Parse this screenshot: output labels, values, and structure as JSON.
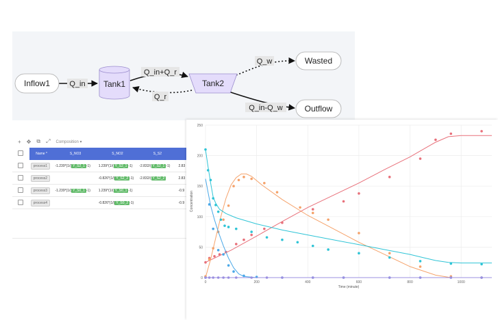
{
  "diagram": {
    "nodes": [
      {
        "id": "inflow1",
        "label": "Inflow1",
        "shape": "stadium"
      },
      {
        "id": "tank1",
        "label": "Tank1",
        "shape": "cylinder"
      },
      {
        "id": "tank2",
        "label": "Tank2",
        "shape": "trapezoid"
      },
      {
        "id": "wasted",
        "label": "Wasted",
        "shape": "stadium"
      },
      {
        "id": "outflow",
        "label": "Outflow",
        "shape": "stadium"
      }
    ],
    "edges": [
      {
        "from": "inflow1",
        "to": "tank1",
        "label": "Q_in",
        "style": "solid"
      },
      {
        "from": "tank1",
        "to": "tank2",
        "label": "Q_in+Q_r",
        "style": "solid"
      },
      {
        "from": "tank2",
        "to": "tank1",
        "label": "Q_r",
        "style": "dotted"
      },
      {
        "from": "tank2",
        "to": "wasted",
        "label": "Q_w",
        "style": "dotted"
      },
      {
        "from": "tank2",
        "to": "outflow",
        "label": "Q_in-Q_w",
        "style": "solid"
      }
    ]
  },
  "table": {
    "toolbar": {
      "add_icon": "+",
      "move_icon": "✥",
      "copy_icon": "⧉",
      "expand_icon": "⤢",
      "dropdown_label": "Composition",
      "dropdown_icon": "▾"
    },
    "headers": [
      "Name *",
      "S_NO3",
      "S_NO2",
      "S_S2",
      ""
    ],
    "rows": [
      {
        "name": "process1",
        "cells": [
          {
            "pre": "-1.239*(1/(",
            "tag": "Y_S2_1",
            "post": "-1)"
          },
          {
            "pre": "1.239*(1/(",
            "tag": "Y_S2_1",
            "post": "-1)"
          },
          {
            "pre": "-2.832/(",
            "tag": "Y_S2_1",
            "post": "-1)"
          },
          {
            "pre": "2.83",
            "tag": "",
            "post": ""
          }
        ]
      },
      {
        "name": "process2",
        "cells": [
          {
            "pre": "",
            "tag": "",
            "post": ""
          },
          {
            "pre": "-0.826*(1/(",
            "tag": "Y_S2_2",
            "post": "-1)"
          },
          {
            "pre": "-2.832/(",
            "tag": "Y_S2_2",
            "post": ""
          },
          {
            "pre": "2.83",
            "tag": "",
            "post": ""
          }
        ]
      },
      {
        "name": "process3",
        "cells": [
          {
            "pre": "-1.239*(1/(",
            "tag": "Y_S0_1",
            "post": "-1)"
          },
          {
            "pre": "1.239*(1/(",
            "tag": "Y_S0_1",
            "post": "-1)"
          },
          {
            "pre": "",
            "tag": "",
            "post": ""
          },
          {
            "pre": "-0.9",
            "tag": "",
            "post": ""
          }
        ]
      },
      {
        "name": "process4",
        "cells": [
          {
            "pre": "",
            "tag": "",
            "post": ""
          },
          {
            "pre": "-0.826*(1/(",
            "tag": "Y_S0_2",
            "post": "-1)"
          },
          {
            "pre": "",
            "tag": "",
            "post": ""
          },
          {
            "pre": "-0.9",
            "tag": "",
            "post": ""
          }
        ]
      }
    ]
  },
  "chart_data": {
    "type": "scatter",
    "xlabel": "Time (minute)",
    "ylabel": "Concentration",
    "xlim": [
      0,
      1120
    ],
    "ylim": [
      0,
      250
    ],
    "xticks": [
      0,
      200,
      400,
      600,
      800,
      1000
    ],
    "yticks": [
      0,
      50,
      100,
      150,
      200,
      250
    ],
    "grid": true,
    "series": [
      {
        "color": "#e8707a",
        "points": [
          [
            0,
            25
          ],
          [
            15,
            32
          ],
          [
            35,
            35
          ],
          [
            55,
            38
          ],
          [
            80,
            42
          ],
          [
            120,
            55
          ],
          [
            150,
            62
          ],
          [
            180,
            70
          ],
          [
            230,
            80
          ],
          [
            300,
            90
          ],
          [
            420,
            112
          ],
          [
            540,
            125
          ],
          [
            600,
            138
          ],
          [
            720,
            165
          ],
          [
            840,
            195
          ],
          [
            900,
            226
          ],
          [
            960,
            236
          ],
          [
            1080,
            240
          ]
        ],
        "curve": [
          [
            0,
            25
          ],
          [
            100,
            45
          ],
          [
            200,
            68
          ],
          [
            300,
            92
          ],
          [
            400,
            115
          ],
          [
            500,
            135
          ],
          [
            600,
            155
          ],
          [
            700,
            177
          ],
          [
            800,
            198
          ],
          [
            850,
            210
          ],
          [
            900,
            222
          ],
          [
            950,
            231
          ],
          [
            1000,
            233
          ],
          [
            1120,
            233
          ]
        ]
      },
      {
        "color": "#f5a26a",
        "points": [
          [
            0,
            2
          ],
          [
            15,
            30
          ],
          [
            30,
            48
          ],
          [
            50,
            75
          ],
          [
            70,
            95
          ],
          [
            90,
            118
          ],
          [
            110,
            150
          ],
          [
            130,
            160
          ],
          [
            150,
            165
          ],
          [
            180,
            162
          ],
          [
            230,
            155
          ],
          [
            280,
            140
          ],
          [
            370,
            115
          ],
          [
            420,
            106
          ],
          [
            480,
            95
          ],
          [
            600,
            73
          ],
          [
            720,
            40
          ],
          [
            840,
            18
          ],
          [
            960,
            2
          ],
          [
            1080,
            0
          ]
        ],
        "curve": [
          [
            0,
            0
          ],
          [
            20,
            30
          ],
          [
            40,
            65
          ],
          [
            60,
            100
          ],
          [
            80,
            130
          ],
          [
            100,
            152
          ],
          [
            120,
            164
          ],
          [
            140,
            170
          ],
          [
            160,
            170
          ],
          [
            180,
            166
          ],
          [
            220,
            152
          ],
          [
            300,
            128
          ],
          [
            400,
            102
          ],
          [
            500,
            80
          ],
          [
            600,
            58
          ],
          [
            700,
            38
          ],
          [
            800,
            18
          ],
          [
            900,
            4
          ],
          [
            960,
            0
          ],
          [
            1120,
            0
          ]
        ]
      },
      {
        "color": "#2ec4d6",
        "points": [
          [
            0,
            210
          ],
          [
            10,
            176
          ],
          [
            20,
            160
          ],
          [
            30,
            130
          ],
          [
            40,
            119
          ],
          [
            50,
            108
          ],
          [
            60,
            95
          ],
          [
            75,
            85
          ],
          [
            90,
            83
          ],
          [
            120,
            80
          ],
          [
            180,
            75
          ],
          [
            240,
            66
          ],
          [
            300,
            62
          ],
          [
            360,
            58
          ],
          [
            420,
            52
          ],
          [
            480,
            46
          ],
          [
            600,
            40
          ],
          [
            720,
            33
          ],
          [
            840,
            27
          ],
          [
            960,
            23
          ],
          [
            1080,
            22
          ]
        ],
        "curve": [
          [
            0,
            210
          ],
          [
            10,
            182
          ],
          [
            20,
            155
          ],
          [
            30,
            132
          ],
          [
            40,
            122
          ],
          [
            55,
            112
          ],
          [
            80,
            105
          ],
          [
            120,
            98
          ],
          [
            200,
            88
          ],
          [
            300,
            78
          ],
          [
            400,
            70
          ],
          [
            500,
            62
          ],
          [
            600,
            54
          ],
          [
            700,
            46
          ],
          [
            800,
            38
          ],
          [
            850,
            33
          ],
          [
            900,
            28
          ],
          [
            950,
            25
          ],
          [
            1000,
            24
          ],
          [
            1120,
            24
          ]
        ]
      },
      {
        "color": "#4aa8e8",
        "points": [
          [
            0,
            0
          ],
          [
            15,
            120
          ],
          [
            30,
            80
          ],
          [
            50,
            45
          ],
          [
            70,
            38
          ],
          [
            90,
            20
          ],
          [
            110,
            10
          ],
          [
            150,
            3
          ],
          [
            200,
            1
          ],
          [
            300,
            0
          ],
          [
            420,
            0
          ],
          [
            540,
            0
          ],
          [
            720,
            0
          ],
          [
            840,
            0
          ],
          [
            960,
            0
          ],
          [
            1080,
            0
          ]
        ],
        "curve": [
          [
            0,
            162
          ],
          [
            10,
            140
          ],
          [
            20,
            118
          ],
          [
            35,
            95
          ],
          [
            50,
            75
          ],
          [
            70,
            52
          ],
          [
            90,
            32
          ],
          [
            110,
            16
          ],
          [
            130,
            6
          ],
          [
            150,
            2
          ],
          [
            200,
            0
          ],
          [
            1120,
            0
          ]
        ]
      },
      {
        "color": "#9b8fe0",
        "points": [
          [
            0,
            0
          ],
          [
            15,
            0
          ],
          [
            30,
            0
          ],
          [
            50,
            0
          ],
          [
            70,
            0
          ],
          [
            90,
            0
          ],
          [
            120,
            0
          ],
          [
            180,
            0
          ],
          [
            240,
            0
          ],
          [
            300,
            0
          ],
          [
            420,
            0
          ],
          [
            540,
            0
          ],
          [
            720,
            0
          ],
          [
            840,
            0
          ],
          [
            960,
            0
          ],
          [
            1080,
            0
          ]
        ],
        "curve": [
          [
            0,
            0
          ],
          [
            1120,
            0
          ]
        ]
      }
    ]
  }
}
